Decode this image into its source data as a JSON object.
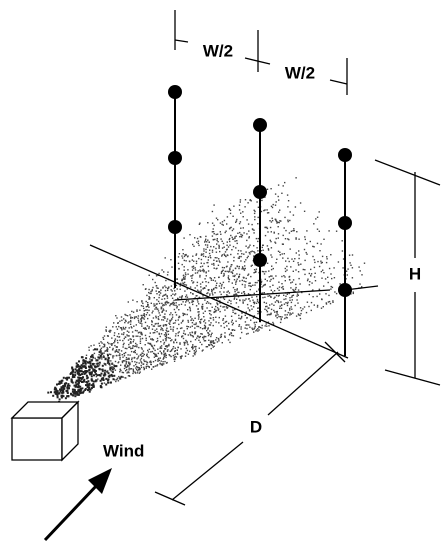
{
  "dimension_labels": [
    "W/2",
    "W/2",
    "H",
    "D"
  ],
  "wind": {
    "label": "Wind"
  }
}
